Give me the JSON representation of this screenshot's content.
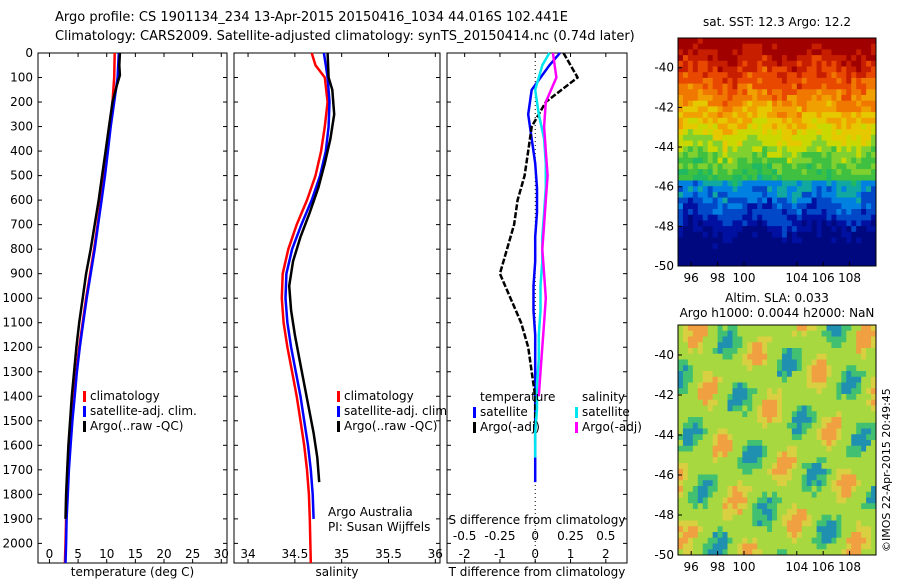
{
  "header": {
    "line1": "Argo profile: CS 1901134_234 13-Apr-2015 20150416_1034 44.016S 102.441E",
    "line2": "Climatology: CARS2009. Satellite-adjusted climatology: synTS_20150414.nc (0.74d later)"
  },
  "stamp": "©IMOS 22-Apr-2015 20:49:45",
  "colors": {
    "climatology": "#ff0000",
    "satellite_adj": "#0000ff",
    "argo": "#000000",
    "salinity_sat": "#00e5ee",
    "salinity_argo": "#ff00ff"
  },
  "chart_data": [
    {
      "id": "temperature",
      "type": "line",
      "xlabel": "temperature (deg C)",
      "xlim": [
        -2,
        31
      ],
      "xticks": [
        0,
        5,
        10,
        15,
        20,
        25,
        30
      ],
      "ylim": [
        0,
        2080
      ],
      "yticks": [
        0,
        100,
        200,
        300,
        400,
        500,
        600,
        700,
        800,
        900,
        1000,
        1100,
        1200,
        1300,
        1400,
        1500,
        1600,
        1700,
        1800,
        1900,
        2000
      ],
      "y_reversed": true,
      "legend": [
        "climatology",
        "satellite-adj. clim.",
        "Argo(..raw -QC)"
      ],
      "series": [
        {
          "name": "climatology",
          "color": "#ff0000",
          "x": [
            11.4,
            11.3,
            11.0,
            10.6,
            10.1,
            9.6,
            9.0,
            8.4,
            7.8,
            7.1,
            6.4,
            5.8,
            5.2,
            4.7,
            4.3,
            3.9,
            3.6,
            3.3,
            3.1,
            2.9,
            2.8,
            2.7
          ],
          "y": [
            0,
            100,
            200,
            300,
            400,
            500,
            600,
            700,
            800,
            900,
            1000,
            1100,
            1200,
            1300,
            1400,
            1500,
            1600,
            1700,
            1800,
            1900,
            2000,
            2080
          ]
        },
        {
          "name": "satellite-adj. clim.",
          "color": "#0000ff",
          "x": [
            12.1,
            11.9,
            11.3,
            10.7,
            10.2,
            9.7,
            9.1,
            8.5,
            7.9,
            7.2,
            6.5,
            5.9,
            5.3,
            4.8,
            4.4,
            4.0,
            3.7,
            3.4,
            3.2,
            3.0,
            2.9,
            2.8
          ],
          "y": [
            0,
            100,
            200,
            300,
            400,
            500,
            600,
            700,
            800,
            900,
            1000,
            1100,
            1200,
            1300,
            1400,
            1500,
            1600,
            1700,
            1800,
            1900,
            2000,
            2080
          ]
        },
        {
          "name": "Argo(..raw -QC)",
          "color": "#000000",
          "x": [
            12.3,
            12.2,
            12.3,
            11.8,
            11.0,
            10.4,
            9.8,
            9.2,
            8.6,
            7.9,
            7.2,
            6.4,
            5.8,
            5.2,
            4.7,
            4.3,
            3.9,
            3.6,
            3.3,
            3.1,
            2.9,
            2.8
          ],
          "y": [
            0,
            50,
            90,
            130,
            200,
            300,
            400,
            500,
            600,
            700,
            800,
            900,
            1000,
            1100,
            1200,
            1300,
            1400,
            1500,
            1600,
            1700,
            1800,
            1900
          ]
        }
      ]
    },
    {
      "id": "salinity",
      "type": "line",
      "xlabel": "salinity",
      "xlim": [
        33.85,
        36.05
      ],
      "xticks": [
        34,
        34.5,
        35,
        35.5,
        36
      ],
      "ylim": [
        0,
        2080
      ],
      "y_reversed": true,
      "legend": [
        "climatology",
        "satellite-adj. clim.",
        "Argo(..raw -QC)"
      ],
      "annotation": [
        "Argo Australia",
        "PI: Susan Wijffels"
      ],
      "series": [
        {
          "name": "climatology",
          "color": "#ff0000",
          "x": [
            34.68,
            34.72,
            34.82,
            34.85,
            34.82,
            34.78,
            34.72,
            34.63,
            34.52,
            34.43,
            34.37,
            34.36,
            34.38,
            34.42,
            34.47,
            34.52,
            34.56,
            34.6,
            34.63,
            34.65,
            34.66,
            34.67
          ],
          "y": [
            0,
            50,
            100,
            200,
            300,
            400,
            500,
            600,
            700,
            800,
            900,
            1000,
            1100,
            1200,
            1300,
            1400,
            1500,
            1600,
            1700,
            1800,
            1900,
            2080
          ]
        },
        {
          "name": "satellite-adj. clim.",
          "color": "#0000ff",
          "x": [
            34.81,
            34.83,
            34.85,
            34.87,
            34.86,
            34.83,
            34.77,
            34.68,
            34.57,
            34.47,
            34.41,
            34.4,
            34.42,
            34.46,
            34.51,
            34.56,
            34.6,
            34.64,
            34.67,
            34.69,
            34.7
          ],
          "y": [
            0,
            50,
            100,
            200,
            300,
            400,
            500,
            600,
            700,
            800,
            900,
            1000,
            1100,
            1200,
            1300,
            1400,
            1500,
            1600,
            1700,
            1800,
            1900
          ]
        },
        {
          "name": "Argo(..raw -QC)",
          "color": "#000000",
          "x": [
            34.85,
            34.86,
            34.9,
            34.92,
            34.88,
            34.82,
            34.75,
            34.66,
            34.56,
            34.48,
            34.44,
            34.46,
            34.5,
            34.55,
            34.6,
            34.65,
            34.7,
            34.74,
            34.76
          ],
          "y": [
            0,
            100,
            150,
            250,
            350,
            450,
            550,
            650,
            750,
            850,
            950,
            1050,
            1150,
            1250,
            1350,
            1450,
            1550,
            1650,
            1750
          ]
        }
      ]
    },
    {
      "id": "difference",
      "type": "line",
      "xlabel": "T difference from climatology",
      "top_label": "S difference from climatology",
      "xlim": [
        -2.5,
        2.6
      ],
      "xticks": [
        -2,
        -1,
        0,
        1,
        2
      ],
      "top_xticks": [
        "-0.5",
        "-0.25",
        "0",
        "0.25",
        "0.5"
      ],
      "ylim": [
        0,
        2080
      ],
      "y_reversed": true,
      "legend_groups": [
        {
          "title": "temperature",
          "items": [
            "satellite",
            "Argo(-adj)"
          ]
        },
        {
          "title": "salinity",
          "items": [
            "satellite",
            "Argo(-adj)"
          ]
        }
      ],
      "series": [
        {
          "name": "temperature satellite",
          "color": "#0000ff",
          "x": [
            0.7,
            0.4,
            -0.1,
            -0.2,
            -0.1,
            0.0,
            0.05,
            0.05,
            0.0,
            0.0,
            -0.05,
            -0.05,
            0.0,
            0.0,
            0.0,
            0.0,
            0.0,
            0.0,
            0.0
          ],
          "y": [
            0,
            50,
            150,
            250,
            350,
            450,
            550,
            650,
            750,
            850,
            950,
            1050,
            1150,
            1250,
            1350,
            1450,
            1550,
            1650,
            1750
          ]
        },
        {
          "name": "temperature Argo(-adj)",
          "color": "#000000",
          "x": [
            0.8,
            1.2,
            0.3,
            -0.1,
            -0.2,
            -0.3,
            -0.5,
            -0.6,
            -0.8,
            -1.0,
            -0.7,
            -0.4,
            -0.2,
            -0.1,
            0.0,
            0.0,
            0.0
          ],
          "y": [
            0,
            100,
            200,
            300,
            400,
            500,
            600,
            700,
            800,
            900,
            1000,
            1100,
            1200,
            1300,
            1400,
            1500,
            1600
          ]
        },
        {
          "name": "salinity satellite",
          "color": "#00e5ee",
          "x": [
            0.4,
            0.2,
            0.0,
            0.1,
            0.25,
            0.3,
            0.3,
            0.25,
            0.2,
            0.2,
            0.15,
            0.15,
            0.1,
            0.1,
            0.05,
            0.05,
            0.0,
            0.0
          ],
          "y": [
            0,
            50,
            150,
            250,
            350,
            450,
            550,
            650,
            750,
            850,
            950,
            1050,
            1150,
            1250,
            1350,
            1450,
            1550,
            1650
          ]
        },
        {
          "name": "salinity Argo(-adj)",
          "color": "#ff00ff",
          "x": [
            0.5,
            0.6,
            0.3,
            0.25,
            0.3,
            0.35,
            0.3,
            0.25,
            0.2,
            0.25,
            0.3,
            0.25,
            0.2,
            0.15,
            0.1
          ],
          "y": [
            0,
            100,
            200,
            300,
            400,
            500,
            600,
            700,
            800,
            900,
            1000,
            1100,
            1200,
            1300,
            1400
          ]
        }
      ]
    },
    {
      "id": "sst_map",
      "type": "heatmap",
      "title": "sat. SST: 12.3 Argo: 12.2",
      "xticks": [
        96,
        98,
        100,
        104,
        106,
        108
      ],
      "yticks": [
        -40,
        -42,
        -44,
        -46,
        -48,
        -50
      ],
      "xlim": [
        95,
        110
      ],
      "ylim": [
        -50,
        -38.5
      ]
    },
    {
      "id": "sla_map",
      "type": "heatmap",
      "title_lines": [
        "Altim. SLA: 0.033",
        "Argo h1000: 0.0044 h2000: NaN"
      ],
      "xticks": [
        96,
        98,
        100,
        104,
        106,
        108
      ],
      "yticks": [
        -40,
        -42,
        -44,
        -46,
        -48,
        -50
      ],
      "xlim": [
        95,
        110
      ],
      "ylim": [
        -50,
        -38.5
      ]
    }
  ]
}
